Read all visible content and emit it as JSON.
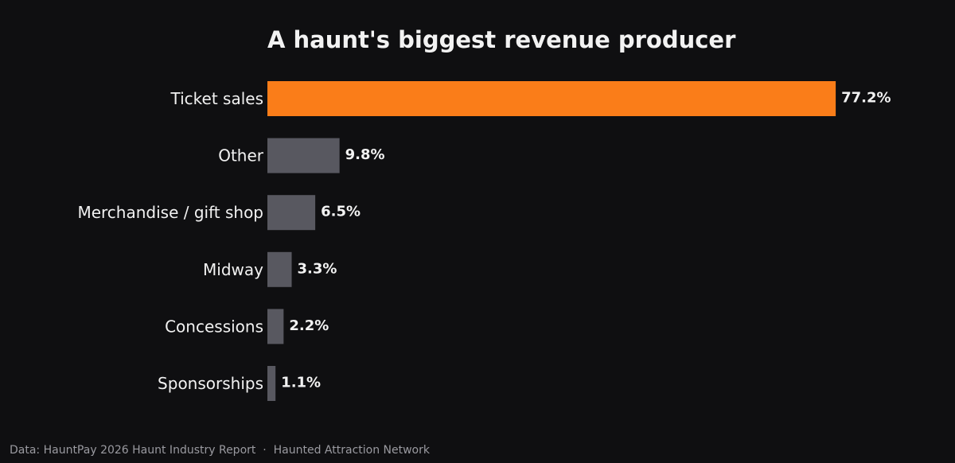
{
  "chart_data": {
    "type": "bar",
    "orientation": "horizontal",
    "title": "A haunt's biggest revenue producer",
    "categories": [
      "Ticket sales",
      "Other",
      "Merchandise / gift shop",
      "Midway",
      "Concessions",
      "Sponsorships"
    ],
    "values": [
      77.2,
      9.8,
      6.5,
      3.3,
      2.2,
      1.1
    ],
    "value_labels": [
      "77.2%",
      "9.8%",
      "6.5%",
      "3.3%",
      "2.2%",
      "1.1%"
    ],
    "xlabel": "",
    "ylabel": "",
    "grid": false,
    "legend": "none",
    "colors": {
      "highlight": "#fa7d19",
      "default": "#585860",
      "background": "#0f0f11",
      "text": "#f2f2f2"
    }
  },
  "footer": {
    "source": "Data: HauntPay 2026 Haunt Industry Report  ·  Haunted Attraction Network"
  }
}
